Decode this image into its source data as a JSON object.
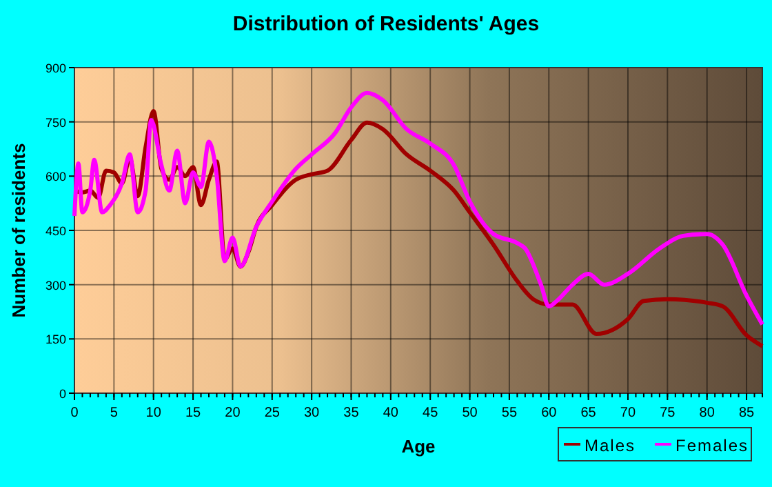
{
  "chart_data": {
    "type": "line",
    "title": "Distribution of Residents' Ages",
    "xlabel": "Age",
    "ylabel": "Number of residents",
    "xlim": [
      0,
      87
    ],
    "xticks": [
      0,
      5,
      10,
      15,
      20,
      25,
      30,
      35,
      40,
      45,
      50,
      55,
      60,
      65,
      70,
      75,
      80,
      85
    ],
    "ylim": [
      0,
      900
    ],
    "yticks": [
      0,
      150,
      300,
      450,
      600,
      750,
      900
    ],
    "grid": true,
    "legend": "bottom right",
    "series": [
      {
        "name": "Males",
        "color": "#a00000",
        "x": [
          0,
          1,
          2,
          3,
          4,
          5,
          6,
          7,
          8,
          9,
          10,
          11,
          12,
          13,
          14,
          15,
          16,
          17,
          18,
          19,
          20,
          21,
          22,
          23,
          25,
          28,
          30,
          32,
          35,
          37,
          39,
          42,
          45,
          48,
          50,
          53,
          56,
          58,
          60,
          63,
          66,
          70,
          72,
          75,
          80,
          82,
          85,
          87
        ],
        "values": [
          560,
          555,
          560,
          540,
          615,
          610,
          580,
          650,
          545,
          680,
          780,
          620,
          590,
          625,
          600,
          625,
          520,
          590,
          640,
          370,
          400,
          350,
          390,
          460,
          520,
          590,
          605,
          615,
          700,
          748,
          730,
          660,
          615,
          560,
          500,
          410,
          310,
          260,
          245,
          245,
          164,
          205,
          255,
          260,
          250,
          240,
          160,
          130
        ]
      },
      {
        "name": "Females",
        "color": "#ff00ff",
        "x": [
          0,
          0.5,
          1,
          2,
          2.5,
          3.5,
          4.5,
          6,
          7,
          8,
          9,
          9.7,
          11,
          12,
          13,
          14,
          15,
          16,
          17,
          18,
          19,
          20,
          21,
          23,
          25,
          28,
          30,
          33,
          35,
          37,
          39,
          42,
          45,
          48,
          50,
          53,
          56,
          57,
          59,
          60,
          61,
          63,
          65,
          67,
          70,
          74,
          77,
          80,
          82,
          85,
          87
        ],
        "values": [
          490,
          635,
          500,
          560,
          645,
          500,
          520,
          580,
          660,
          500,
          560,
          755,
          630,
          560,
          670,
          525,
          610,
          570,
          695,
          600,
          365,
          430,
          350,
          460,
          530,
          620,
          660,
          720,
          790,
          830,
          810,
          730,
          690,
          630,
          530,
          440,
          415,
          400,
          300,
          240,
          255,
          300,
          330,
          300,
          330,
          400,
          435,
          440,
          410,
          270,
          190
        ]
      }
    ]
  }
}
